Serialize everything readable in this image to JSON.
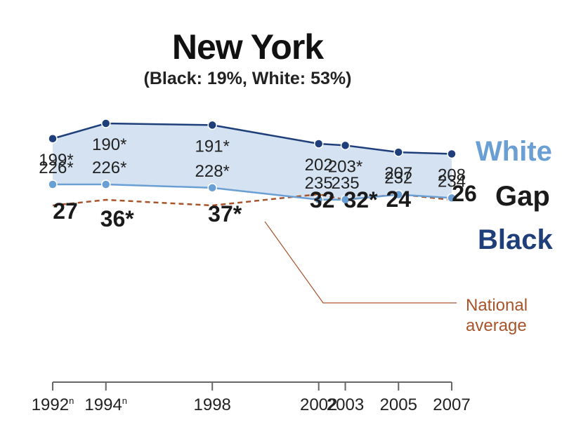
{
  "chart_data": {
    "type": "line",
    "title": "New York",
    "subtitle": "(Black: 19%, White: 53%)",
    "x": [
      "1992",
      "1994",
      "1998",
      "2002",
      "2003",
      "2005",
      "2007"
    ],
    "x_tick_labels": [
      "1992",
      "1994",
      "1998",
      "2002",
      "2003",
      "2005",
      "2007"
    ],
    "x_tick_suffix": [
      "n",
      "n",
      "",
      "",
      "",
      "",
      ""
    ],
    "series": [
      {
        "name": "White",
        "values": [
          226,
          226,
          228,
          235,
          235,
          232,
          234
        ],
        "labels": [
          "226*",
          "226*",
          "228*",
          "235",
          "235",
          "232",
          "234"
        ],
        "color": "#6a9fd4"
      },
      {
        "name": "Black",
        "values": [
          199,
          190,
          191,
          202,
          203,
          207,
          208
        ],
        "labels": [
          "199*",
          "190*",
          "191*",
          "202",
          "203*",
          "207",
          "208"
        ],
        "color": "#1f3f7a"
      }
    ],
    "gap": {
      "name": "Gap",
      "values": [
        27,
        36,
        37,
        32,
        32,
        24,
        26
      ],
      "labels": [
        "27",
        "36*",
        "37*",
        "32",
        "32*",
        "24",
        "26"
      ]
    },
    "national_average_gap": {
      "name": "National average",
      "label_line1": "National",
      "label_line2": "average",
      "values": [
        30,
        29,
        30,
        28,
        29,
        28,
        29
      ],
      "color": "#a8542a"
    },
    "band_color": "#d4e2f2",
    "ylim": [
      170,
      250
    ]
  }
}
